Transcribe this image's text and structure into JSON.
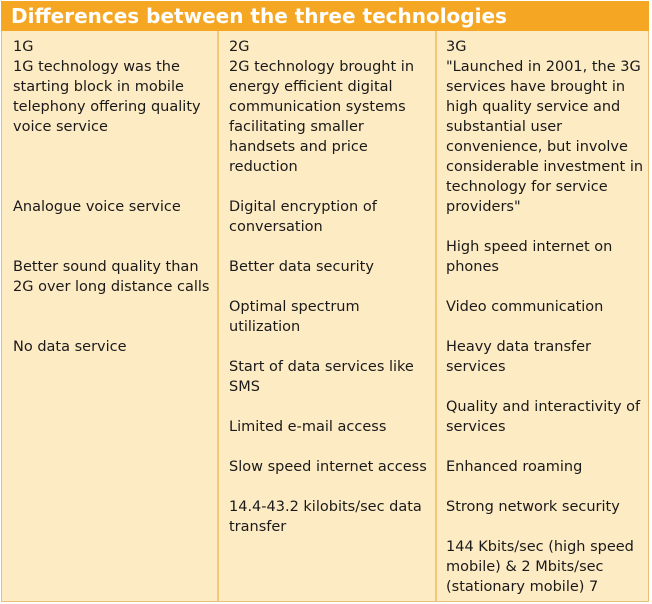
{
  "title": "Differences between the three technologies",
  "columns": [
    {
      "header": "1G",
      "items": [
        "1G technology was the starting block in mobile telephony offering quality voice service",
        "Analogue voice service",
        "Better sound quality than 2G over long distance calls",
        "No data service"
      ]
    },
    {
      "header": "2G",
      "items": [
        "2G technology brought in energy efficient digital communication systems facilitating smaller handsets and price reduction",
        "Digital encryption of conversation",
        "Better data security",
        "Optimal spectrum utilization",
        "Start of data services like SMS",
        "Limited e-mail access",
        "Slow speed internet access",
        "14.4-43.2 kilobits/sec data transfer"
      ]
    },
    {
      "header": "3G",
      "items": [
        "\"Launched in 2001, the 3G services have brought in high quality service and substantial user convenience, but involve considerable investment in technology for service providers\"",
        "High speed internet on phones",
        "Video communication",
        "Heavy data transfer services",
        "Quality and interactivity of services",
        "Enhanced roaming",
        "Strong network security",
        "144 Kbits/sec (high speed mobile) & 2 Mbits/sec (stationary mobile) 7"
      ]
    }
  ]
}
